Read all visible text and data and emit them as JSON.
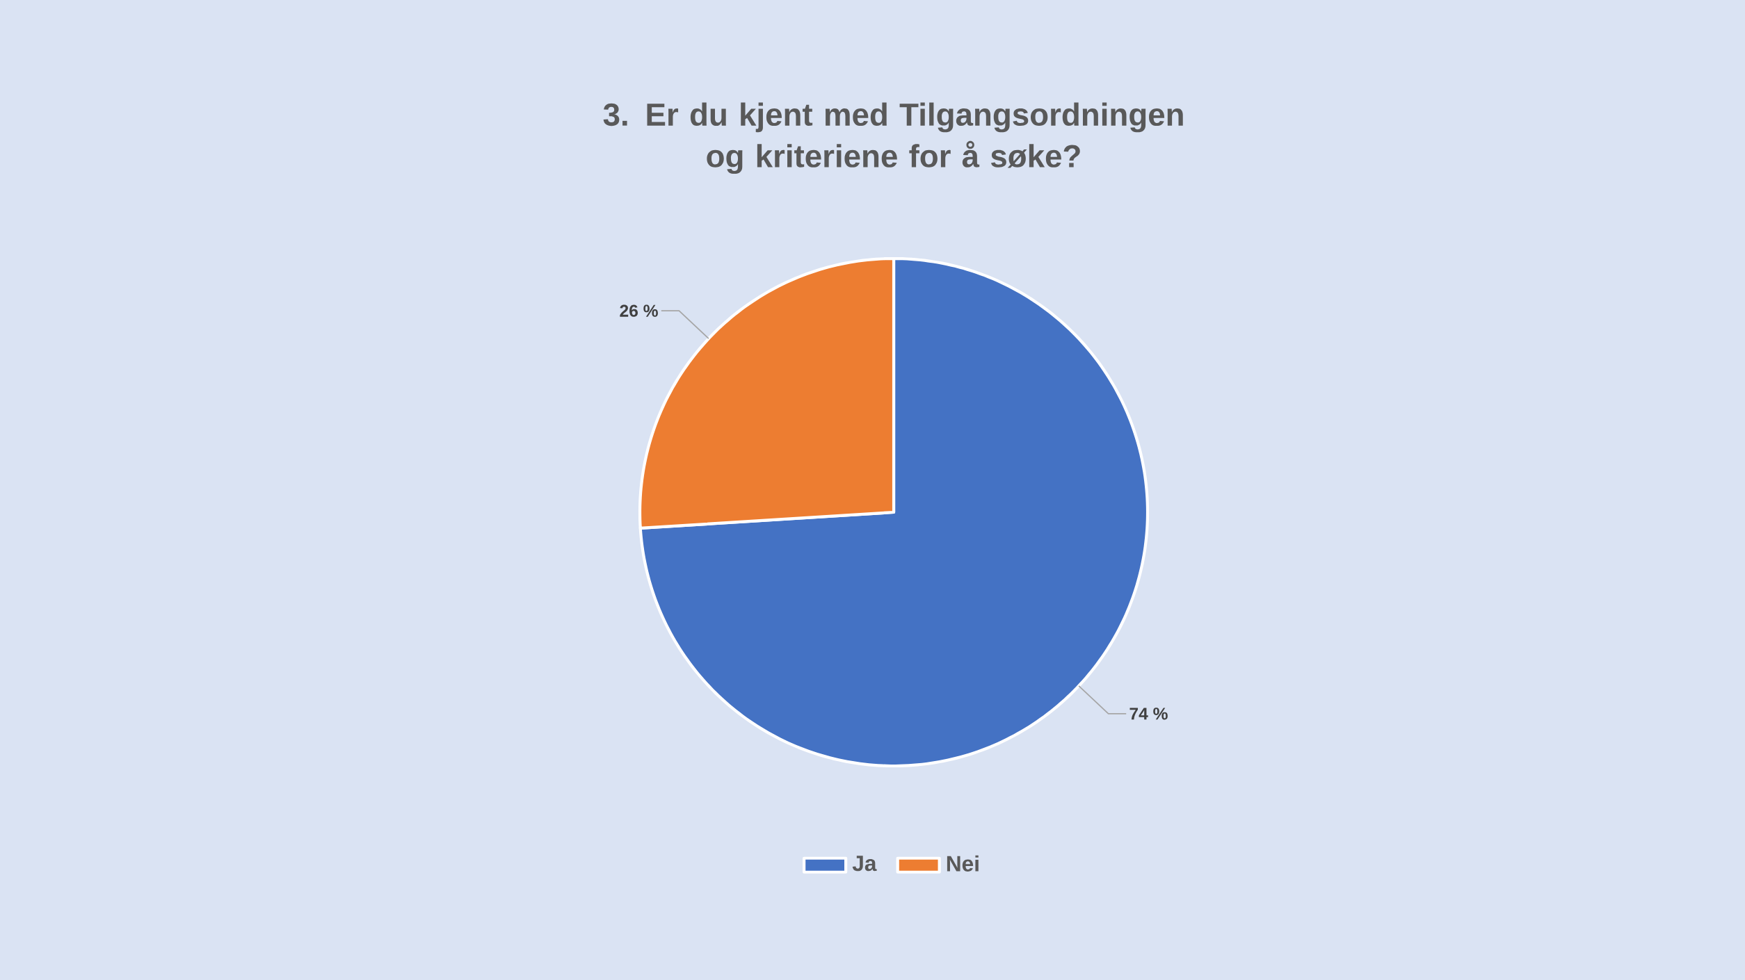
{
  "chart_data": {
    "type": "pie",
    "title": "3. Er du kjent med Tilgangsordningen og kriteriene for å søke?",
    "categories": [
      "Ja",
      "Nei"
    ],
    "values": [
      74,
      26
    ],
    "colors": [
      "#4472c4",
      "#ed7d31"
    ],
    "value_labels": [
      "74 %",
      "26 %"
    ],
    "legend": "bottom"
  }
}
